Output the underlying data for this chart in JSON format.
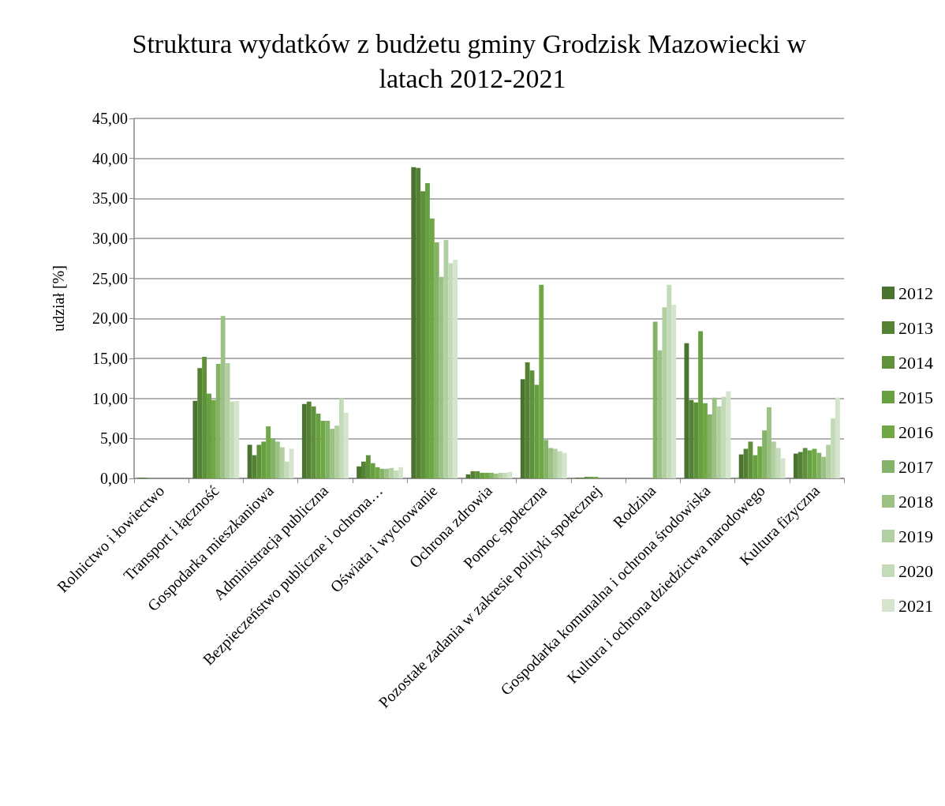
{
  "chart_data": {
    "type": "bar",
    "title": "Struktura wydatków z budżetu gminy Grodzisk Mazowiecki w latach 2012-2021",
    "ylabel": "udział [%]",
    "categories": [
      "Rolnictwo i łowiectwo",
      "Transport i łączność",
      "Gospodarka mieszkaniowa",
      "Administracja publiczna",
      "Bezpieczeństwo publiczne i ochrona…",
      "Oświata i wychowanie",
      "Ochrona zdrowia",
      "Pomoc społeczna",
      "Pozostałe zadania w zakresie polityki społecznej",
      "Rodzina",
      "Gospodarka komunalna i ochrona środowiska",
      "Kultura i ochrona dziedzictwa narodowego",
      "Kultura fizyczna"
    ],
    "series": [
      {
        "name": "2012",
        "color": "#4a7330",
        "values": [
          0.1,
          9.7,
          4.2,
          9.3,
          1.5,
          38.9,
          0.5,
          12.4,
          0.1,
          0,
          16.9,
          3.0,
          3.1
        ]
      },
      {
        "name": "2013",
        "color": "#548235",
        "values": [
          0.1,
          13.8,
          2.9,
          9.6,
          2.1,
          38.8,
          0.9,
          14.5,
          0.1,
          0,
          9.8,
          3.7,
          3.3
        ]
      },
      {
        "name": "2014",
        "color": "#5e913a",
        "values": [
          0,
          15.2,
          4.2,
          9.0,
          2.9,
          35.9,
          0.9,
          13.5,
          0.2,
          0,
          9.5,
          4.6,
          3.8
        ]
      },
      {
        "name": "2015",
        "color": "#66a040",
        "values": [
          0,
          10.6,
          4.6,
          8.1,
          1.9,
          36.9,
          0.7,
          11.7,
          0.2,
          0,
          18.4,
          2.9,
          3.5
        ]
      },
      {
        "name": "2016",
        "color": "#70a845",
        "values": [
          0,
          9.8,
          6.5,
          7.2,
          1.4,
          32.5,
          0.7,
          24.2,
          0.2,
          0,
          9.4,
          4.0,
          3.7
        ]
      },
      {
        "name": "2017",
        "color": "#82b366",
        "values": [
          0,
          14.3,
          5.0,
          7.2,
          1.2,
          29.5,
          0.7,
          4.8,
          0,
          19.6,
          8.0,
          6.0,
          3.2
        ]
      },
      {
        "name": "2018",
        "color": "#9dc185",
        "values": [
          0,
          20.3,
          4.6,
          6.2,
          1.2,
          25.2,
          0.6,
          3.8,
          0,
          16.0,
          10.1,
          8.9,
          2.7
        ]
      },
      {
        "name": "2019",
        "color": "#b1cfa0",
        "values": [
          0,
          14.4,
          3.9,
          6.6,
          1.3,
          29.8,
          0.7,
          3.7,
          0,
          21.4,
          9.0,
          4.6,
          4.2
        ]
      },
      {
        "name": "2020",
        "color": "#c4dbb8",
        "values": [
          0,
          9.6,
          2.1,
          10.0,
          1.0,
          26.9,
          0.7,
          3.4,
          0,
          24.2,
          10.2,
          3.8,
          7.5
        ]
      },
      {
        "name": "2021",
        "color": "#d5e4cc",
        "values": [
          0,
          9.7,
          3.7,
          8.2,
          1.4,
          27.3,
          0.8,
          3.2,
          0,
          21.7,
          10.9,
          2.5,
          10.1
        ]
      }
    ],
    "ylim": [
      0,
      45
    ],
    "yticks": [
      {
        "value": 0,
        "label": "0,00"
      },
      {
        "value": 5,
        "label": "5,00"
      },
      {
        "value": 10,
        "label": "10,00"
      },
      {
        "value": 15,
        "label": "15,00"
      },
      {
        "value": 20,
        "label": "20,00"
      },
      {
        "value": 25,
        "label": "25,00"
      },
      {
        "value": 30,
        "label": "30,00"
      },
      {
        "value": 35,
        "label": "35,00"
      },
      {
        "value": 40,
        "label": "40,00"
      },
      {
        "value": 45,
        "label": "45,00"
      }
    ],
    "grid": "y",
    "legend": "right"
  }
}
